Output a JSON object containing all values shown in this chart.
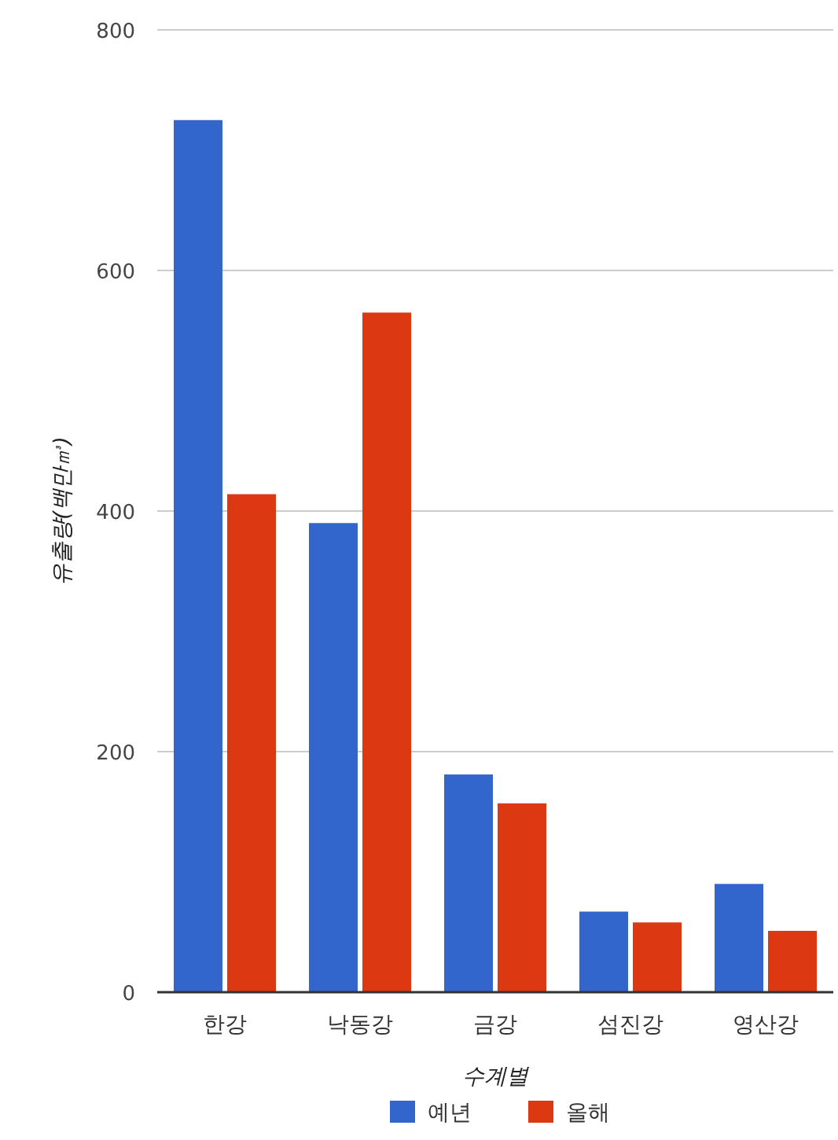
{
  "chart_data": {
    "type": "bar",
    "xlabel": "수계별",
    "ylabel": "유출량(백만㎥)",
    "categories": [
      "한강",
      "낙동강",
      "금강",
      "섬진강",
      "영산강"
    ],
    "series": [
      {
        "name": "예년",
        "color": "#3366cc",
        "values": [
          725,
          390,
          181,
          67,
          90
        ]
      },
      {
        "name": "올해",
        "color": "#dc3912",
        "values": [
          414,
          565,
          157,
          58,
          51
        ]
      }
    ],
    "ylim": [
      0,
      800
    ],
    "yticks": [
      0,
      200,
      400,
      600,
      800
    ],
    "grid": "y",
    "legend": "bottom"
  }
}
